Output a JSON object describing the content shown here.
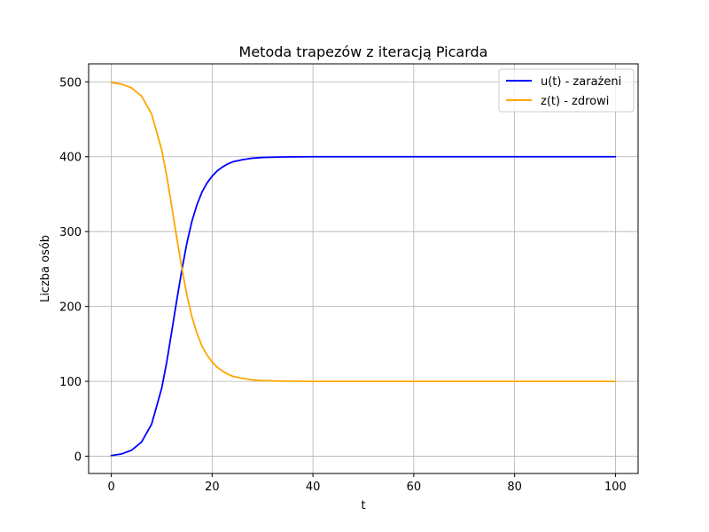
{
  "chart_data": {
    "type": "line",
    "title": "Metoda trapezów z iteracją Picarda",
    "xlabel": "t",
    "ylabel": "Liczba osób",
    "xlim": [
      -4.5,
      104.5
    ],
    "ylim": [
      -23,
      524
    ],
    "xticks": [
      0,
      20,
      40,
      60,
      80,
      100
    ],
    "yticks": [
      0,
      100,
      200,
      300,
      400,
      500
    ],
    "grid": true,
    "legend_position": "upper right",
    "series": [
      {
        "name": "u(t) - zarażeni",
        "color": "#0000ff",
        "x": [
          0,
          2,
          4,
          6,
          8,
          10,
          11,
          12,
          13,
          14,
          15,
          16,
          17,
          18,
          19,
          20,
          21,
          22,
          23,
          24,
          26,
          28,
          30,
          34,
          40,
          50,
          60,
          70,
          80,
          90,
          100
        ],
        "y": [
          1,
          3,
          8,
          19,
          43,
          91,
          126,
          167,
          209,
          249,
          285,
          314,
          336,
          353,
          365,
          374,
          381,
          386,
          390,
          393,
          396,
          398,
          399,
          399.7,
          400,
          400,
          400,
          400,
          400,
          400,
          400
        ]
      },
      {
        "name": "z(t) - zdrowi",
        "color": "#ffa500",
        "x": [
          0,
          2,
          4,
          6,
          8,
          10,
          11,
          12,
          13,
          14,
          15,
          16,
          17,
          18,
          19,
          20,
          21,
          22,
          23,
          24,
          26,
          28,
          30,
          34,
          40,
          50,
          60,
          70,
          80,
          90,
          100
        ],
        "y": [
          499,
          497,
          492,
          481,
          457,
          409,
          374,
          333,
          291,
          251,
          215,
          186,
          164,
          147,
          135,
          126,
          119,
          114,
          110,
          107,
          104,
          102,
          101,
          100.3,
          100,
          100,
          100,
          100,
          100,
          100,
          100
        ]
      }
    ]
  }
}
